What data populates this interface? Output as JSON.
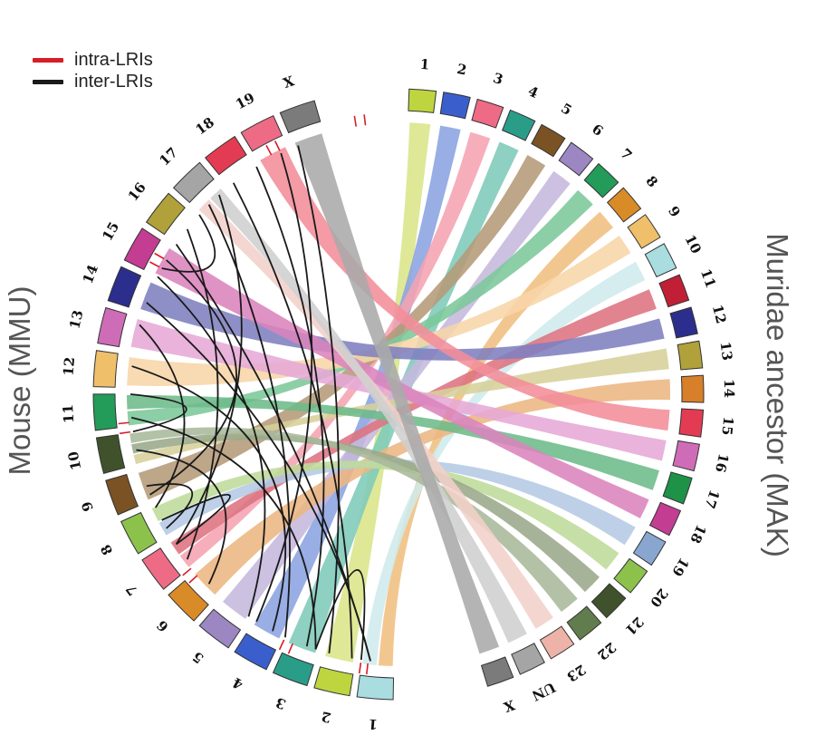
{
  "legend": {
    "intra_label": "intra-LRIs",
    "inter_label": "inter-LRIs",
    "intra_color": "#d71e27",
    "inter_color": "#1a1a1a"
  },
  "titles": {
    "left": "Mouse (MMU)",
    "right": "Muridae ancestor (MAK)"
  },
  "mak_chromosomes": [
    {
      "label": "1",
      "color": "#bfd540"
    },
    {
      "label": "2",
      "color": "#3a5fcd"
    },
    {
      "label": "3",
      "color": "#ee6b86"
    },
    {
      "label": "4",
      "color": "#2a9d89"
    },
    {
      "label": "5",
      "color": "#7a5223"
    },
    {
      "label": "6",
      "color": "#9c87c2"
    },
    {
      "label": "7",
      "color": "#239b59"
    },
    {
      "label": "8",
      "color": "#d98b28"
    },
    {
      "label": "9",
      "color": "#f0bf6a"
    },
    {
      "label": "10",
      "color": "#a9dde0"
    },
    {
      "label": "11",
      "color": "#c01f36"
    },
    {
      "label": "12",
      "color": "#2b2e8c"
    },
    {
      "label": "13",
      "color": "#b1a13a"
    },
    {
      "label": "14",
      "color": "#d87f2a"
    },
    {
      "label": "15",
      "color": "#e33c52"
    },
    {
      "label": "16",
      "color": "#cf6cb8"
    },
    {
      "label": "17",
      "color": "#1e9246"
    },
    {
      "label": "18",
      "color": "#c33d93"
    },
    {
      "label": "19",
      "color": "#88a6cf"
    },
    {
      "label": "20",
      "color": "#8cc24c"
    },
    {
      "label": "21",
      "color": "#3f522c"
    },
    {
      "label": "22",
      "color": "#617d4d"
    },
    {
      "label": "23",
      "color": "#edb3a8"
    },
    {
      "label": "UN",
      "color": "#a5a5a5"
    },
    {
      "label": "X",
      "color": "#7b7b7b"
    }
  ],
  "mmu_chromosomes": [
    {
      "label": "1",
      "color": "#a9dde0"
    },
    {
      "label": "2",
      "color": "#bfd540"
    },
    {
      "label": "3",
      "color": "#2a9d89"
    },
    {
      "label": "4",
      "color": "#3a5fcd"
    },
    {
      "label": "5",
      "color": "#9c87c2"
    },
    {
      "label": "6",
      "color": "#d98b28"
    },
    {
      "label": "7",
      "color": "#ee6b86"
    },
    {
      "label": "8",
      "color": "#8cc24c"
    },
    {
      "label": "9",
      "color": "#7a5223"
    },
    {
      "label": "10",
      "color": "#3f522c"
    },
    {
      "label": "11",
      "color": "#239b59"
    },
    {
      "label": "12",
      "color": "#f0bf6a"
    },
    {
      "label": "13",
      "color": "#cf6cb8"
    },
    {
      "label": "14",
      "color": "#2b2e8c"
    },
    {
      "label": "15",
      "color": "#c33d93"
    },
    {
      "label": "16",
      "color": "#b1a13a"
    },
    {
      "label": "17",
      "color": "#a5a5a5"
    },
    {
      "label": "18",
      "color": "#e33c52"
    },
    {
      "label": "19",
      "color": "#ee6b86"
    },
    {
      "label": "X",
      "color": "#7b7b7b"
    }
  ],
  "links": [
    {
      "mak": "1",
      "mmu": "2",
      "color": "#d9e589"
    },
    {
      "mak": "2",
      "mmu": "4",
      "color": "#8aa3e0"
    },
    {
      "mak": "3",
      "mmu": "7",
      "color": "#f5a3b2"
    },
    {
      "mak": "4",
      "mmu": "3",
      "color": "#7ecab9"
    },
    {
      "mak": "5",
      "mmu": "9",
      "color": "#b59a77"
    },
    {
      "mak": "6",
      "mmu": "5",
      "color": "#c5b8dd"
    },
    {
      "mak": "7",
      "mmu": "11",
      "color": "#7cc89a"
    },
    {
      "mak": "8",
      "mmu": "1",
      "color": "#f0bf80"
    },
    {
      "mak": "9",
      "mmu": "12",
      "color": "#f7d5a8"
    },
    {
      "mak": "10",
      "mmu": "1",
      "color": "#cfeaec"
    },
    {
      "mak": "11",
      "mmu": "7",
      "color": "#dd7381"
    },
    {
      "mak": "12",
      "mmu": "14",
      "color": "#7f7fbf"
    },
    {
      "mak": "13",
      "mmu": "10",
      "color": "#d7d09a"
    },
    {
      "mak": "14",
      "mmu": "6",
      "color": "#ecb681"
    },
    {
      "mak": "15",
      "mmu": "19",
      "color": "#f28d9a"
    },
    {
      "mak": "16",
      "mmu": "13",
      "color": "#e6a8d6"
    },
    {
      "mak": "17",
      "mmu": "11",
      "color": "#6dbb8a"
    },
    {
      "mak": "18",
      "mmu": "15",
      "color": "#db84bd"
    },
    {
      "mak": "19",
      "mmu": "8",
      "color": "#b4c9e4"
    },
    {
      "mak": "20",
      "mmu": "8",
      "color": "#bedb9a"
    },
    {
      "mak": "21",
      "mmu": "10",
      "color": "#9aa88a"
    },
    {
      "mak": "22",
      "mmu": "10",
      "color": "#a8b89a"
    },
    {
      "mak": "23",
      "mmu": "17",
      "color": "#f3d0ca"
    },
    {
      "mak": "UN",
      "mmu": "17",
      "color": "#cfcfcf"
    },
    {
      "mak": "X",
      "mmu": "X",
      "color": "#aaaaaa"
    }
  ]
}
